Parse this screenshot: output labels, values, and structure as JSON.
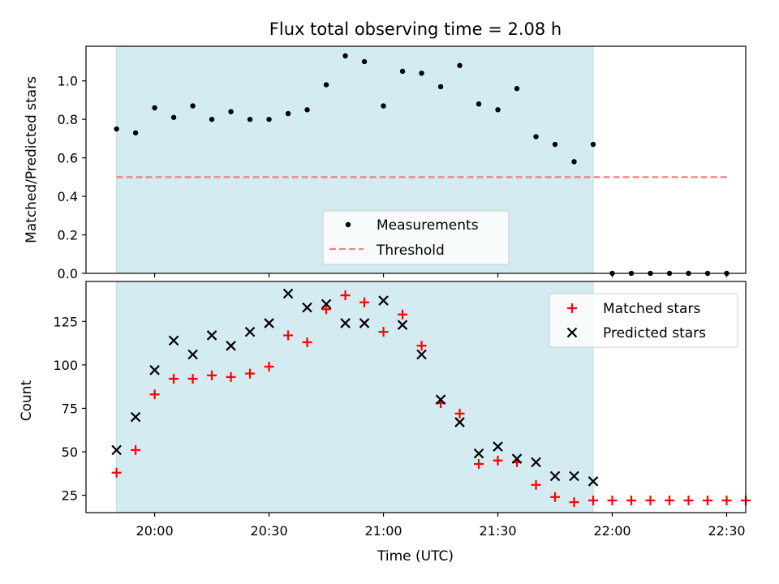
{
  "chart_data": [
    {
      "type": "scatter",
      "title": "Flux total observing time = 2.08 h",
      "xlabel": "",
      "ylabel": "Matched/Predicted stars",
      "ylim": [
        0,
        1.18
      ],
      "yticks": [
        0.0,
        0.2,
        0.4,
        0.6,
        0.8,
        1.0
      ],
      "ytick_labels": [
        "0.0",
        "0.2",
        "0.4",
        "0.6",
        "0.8",
        "1.0"
      ],
      "xlim": [
        "19:42",
        "22:35"
      ],
      "shaded_span": [
        "19:50",
        "21:55"
      ],
      "shaded_color": "#d4ebf1",
      "legend": {
        "position": "lower-center",
        "entries": [
          "Measurements",
          "Threshold"
        ]
      },
      "series": [
        {
          "name": "Measurements",
          "marker": "dot",
          "color": "#000000",
          "x": [
            "19:50",
            "19:55",
            "20:00",
            "20:05",
            "20:10",
            "20:15",
            "20:20",
            "20:25",
            "20:30",
            "20:35",
            "20:40",
            "20:45",
            "20:50",
            "20:55",
            "21:00",
            "21:05",
            "21:10",
            "21:15",
            "21:20",
            "21:25",
            "21:30",
            "21:35",
            "21:40",
            "21:45",
            "21:50",
            "21:55",
            "22:00",
            "22:05",
            "22:10",
            "22:15",
            "22:20",
            "22:25",
            "22:30"
          ],
          "y": [
            0.75,
            0.73,
            0.86,
            0.81,
            0.87,
            0.8,
            0.84,
            0.8,
            0.8,
            0.83,
            0.85,
            0.98,
            1.13,
            1.1,
            0.87,
            1.05,
            1.04,
            0.97,
            1.08,
            0.88,
            0.85,
            0.96,
            0.71,
            0.67,
            0.58,
            0.67,
            0.0,
            0.0,
            0.0,
            0.0,
            0.0,
            0.0,
            0.0
          ]
        },
        {
          "name": "Threshold",
          "style": "dashed",
          "color": "#f08080",
          "x": [
            "19:50",
            "22:30"
          ],
          "y": [
            0.5,
            0.5
          ]
        }
      ]
    },
    {
      "type": "scatter",
      "title": "",
      "xlabel": "Time (UTC)",
      "ylabel": "Count",
      "ylim": [
        15,
        148
      ],
      "yticks": [
        25,
        50,
        75,
        100,
        125
      ],
      "ytick_labels": [
        "25",
        "50",
        "75",
        "100",
        "125"
      ],
      "xlim": [
        "19:42",
        "22:35"
      ],
      "xticks": [
        "20:00",
        "20:30",
        "21:00",
        "21:30",
        "22:00",
        "22:30"
      ],
      "xtick_labels": [
        "20:00",
        "20:30",
        "21:00",
        "21:30",
        "22:00",
        "22:30"
      ],
      "shaded_span": [
        "19:50",
        "21:55"
      ],
      "shaded_color": "#d4ebf1",
      "legend": {
        "position": "top-right",
        "entries": [
          "Matched stars",
          "Predicted stars"
        ]
      },
      "series": [
        {
          "name": "Matched stars",
          "marker": "plus",
          "color": "#ff0000",
          "x": [
            "19:50",
            "19:55",
            "20:00",
            "20:05",
            "20:10",
            "20:15",
            "20:20",
            "20:25",
            "20:30",
            "20:35",
            "20:40",
            "20:45",
            "20:50",
            "20:55",
            "21:00",
            "21:05",
            "21:10",
            "21:15",
            "21:20",
            "21:25",
            "21:30",
            "21:35",
            "21:40",
            "21:45",
            "21:50",
            "21:55",
            "22:00",
            "22:05",
            "22:10",
            "22:15",
            "22:20",
            "22:25",
            "22:30",
            "22:35"
          ],
          "y": [
            38,
            51,
            83,
            92,
            92,
            94,
            93,
            95,
            99,
            117,
            113,
            132,
            140,
            136,
            119,
            129,
            111,
            78,
            72,
            43,
            45,
            44,
            31,
            24,
            21,
            22,
            22,
            22,
            22,
            22,
            22,
            22,
            22,
            22
          ]
        },
        {
          "name": "Predicted stars",
          "marker": "x",
          "color": "#000000",
          "x": [
            "19:50",
            "19:55",
            "20:00",
            "20:05",
            "20:10",
            "20:15",
            "20:20",
            "20:25",
            "20:30",
            "20:35",
            "20:40",
            "20:45",
            "20:50",
            "20:55",
            "21:00",
            "21:05",
            "21:10",
            "21:15",
            "21:20",
            "21:25",
            "21:30",
            "21:35",
            "21:40",
            "21:45",
            "21:50",
            "21:55"
          ],
          "y": [
            51,
            70,
            97,
            114,
            106,
            117,
            111,
            119,
            124,
            141,
            133,
            135,
            124,
            124,
            137,
            123,
            106,
            80,
            67,
            49,
            53,
            46,
            44,
            36,
            36,
            33
          ]
        }
      ]
    }
  ]
}
